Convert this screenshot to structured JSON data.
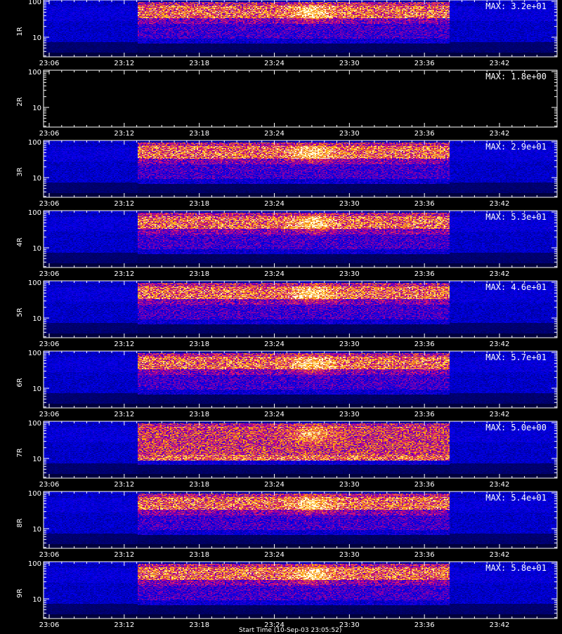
{
  "chart_data": {
    "type": "heatmap",
    "time_ticks": [
      "23:06",
      "23:12",
      "23:18",
      "23:24",
      "23:30",
      "23:36",
      "23:42"
    ],
    "y_ticks": [
      "100",
      "10"
    ],
    "y_scale": "log",
    "colormap": "black-blue-red-yellow-white",
    "signal_window": [
      "23:13",
      "23:38"
    ],
    "panels": [
      {
        "channel": "1R",
        "max_label": "MAX: 3.2e+01",
        "max": 32,
        "empty": false
      },
      {
        "channel": "2R",
        "max_label": "MAX: 1.8e+00",
        "max": 1.8,
        "empty": true
      },
      {
        "channel": "3R",
        "max_label": "MAX: 2.9e+01",
        "max": 29,
        "empty": false
      },
      {
        "channel": "4R",
        "max_label": "MAX: 5.3e+01",
        "max": 53,
        "empty": false
      },
      {
        "channel": "5R",
        "max_label": "MAX: 4.6e+01",
        "max": 46,
        "empty": false
      },
      {
        "channel": "6R",
        "max_label": "MAX: 5.7e+01",
        "max": 57,
        "empty": false
      },
      {
        "channel": "7R",
        "max_label": "MAX: 5.0e+00",
        "max": 5.0,
        "empty": false
      },
      {
        "channel": "8R",
        "max_label": "MAX: 5.4e+01",
        "max": 54,
        "empty": false
      },
      {
        "channel": "9R",
        "max_label": "MAX: 5.8e+01",
        "max": 58,
        "empty": false
      }
    ],
    "xlabel": "Start Time (10-Sep-03 23:05:52)"
  }
}
